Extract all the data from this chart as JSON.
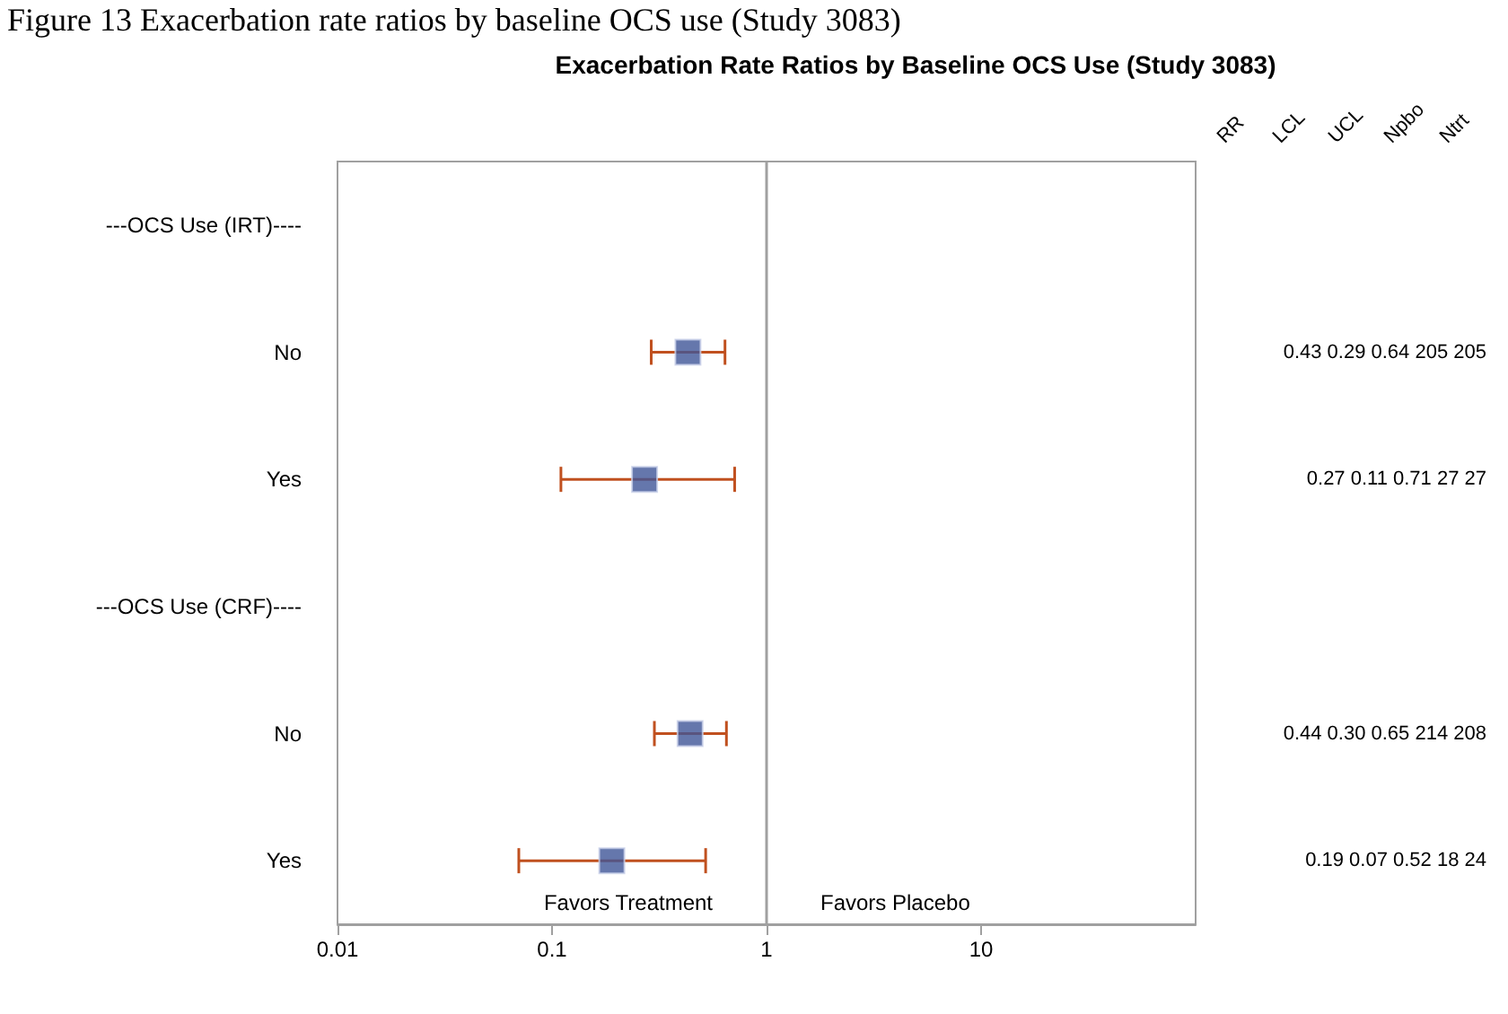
{
  "chart_data": {
    "type": "scatter",
    "orientation": "horizontal",
    "title": "Exacerbation Rate Ratios by Baseline OCS Use (Study 3083)",
    "categories": [
      "---OCS Use (IRT)----",
      "No",
      "Yes",
      "---OCS Use (CRF)----",
      "No",
      "Yes"
    ],
    "series": [
      {
        "color": "#3f5597",
        "values": [
          null,
          0.43,
          0.27,
          null,
          0.44,
          0.19
        ],
        "errors": [
          null,
          [
            0.29,
            0.64
          ],
          [
            0.11,
            0.71
          ],
          null,
          [
            0.3,
            0.65
          ],
          [
            0.07,
            0.52
          ]
        ],
        "value_labels": [
          null,
          "0.43 0.29 0.64 205 205",
          "0.27 0.11 0.71 27 27",
          null,
          "0.44 0.30 0.65 214 208",
          "0.19 0.07 0.52 18 24"
        ]
      }
    ],
    "log": "x",
    "xlim": [
      0.01,
      100
    ],
    "xticks": [
      0.01,
      0.1,
      1,
      10
    ],
    "ref_lines": [
      {
        "axis": "x",
        "value": 1,
        "color": "#a0a0a0"
      }
    ],
    "annotations": [
      "Figure 13 Exacerbation rate ratios by baseline OCS use (Study 3083)",
      "Favors Treatment",
      "Favors Placebo",
      "RR",
      "LCL",
      "UCL",
      "Npbo",
      "Ntrt"
    ],
    "marker": "square",
    "grid": false
  }
}
